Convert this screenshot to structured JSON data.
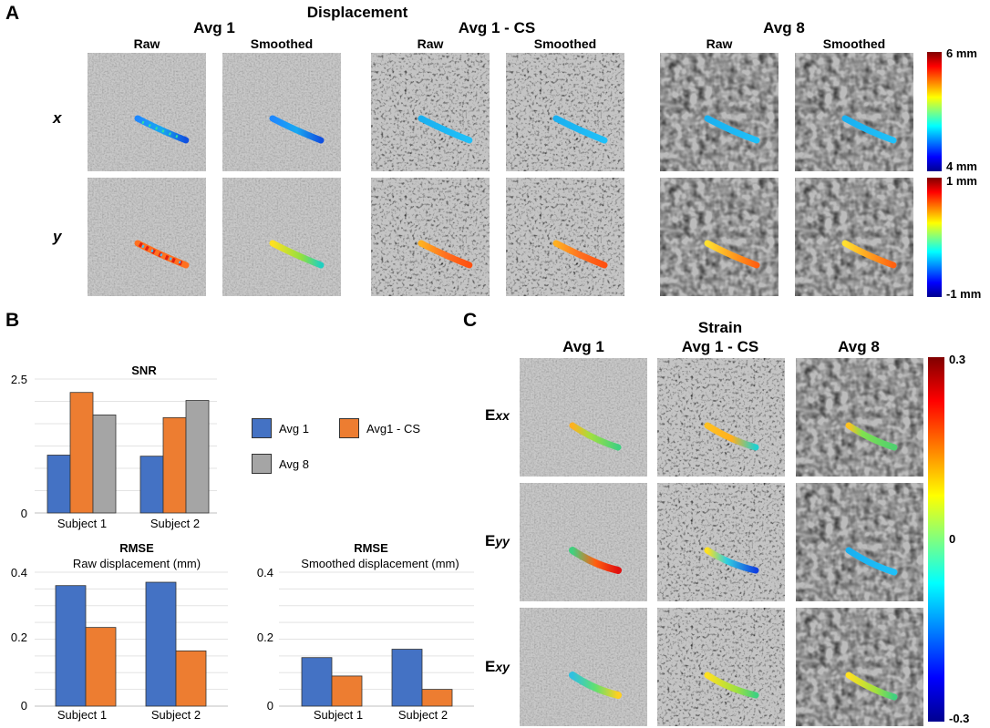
{
  "panel_a": {
    "letter": "A",
    "title": "Displacement",
    "groups": [
      {
        "name": "Avg 1",
        "cols": [
          "Raw",
          "Smoothed"
        ]
      },
      {
        "name": "Avg 1 - CS",
        "cols": [
          "Raw",
          "Smoothed"
        ]
      },
      {
        "name": "Avg 8",
        "cols": [
          "Raw",
          "Smoothed"
        ]
      }
    ],
    "row_labels": [
      "x",
      "y"
    ],
    "colorbar_x": {
      "max": "6 mm",
      "min": "4 mm"
    },
    "colorbar_y": {
      "max": "1 mm",
      "min": "-1 mm"
    }
  },
  "panel_b": {
    "letter": "B",
    "legend": [
      "Avg 1",
      "Avg1 - CS",
      "Avg 8"
    ],
    "colors": {
      "avg1": "#4472c4",
      "avg1cs": "#ed7d31",
      "avg8": "#a5a5a5"
    }
  },
  "panel_c": {
    "letter": "C",
    "title": "Strain",
    "cols": [
      "Avg 1",
      "Avg 1 - CS",
      "Avg 8"
    ],
    "rows": [
      {
        "main": "E",
        "sub": "xx"
      },
      {
        "main": "E",
        "sub": "yy"
      },
      {
        "main": "E",
        "sub": "xy"
      }
    ],
    "colorbar": {
      "max": "0.3",
      "mid": "0",
      "min": "-0.3"
    }
  },
  "chart_data": [
    {
      "type": "bar",
      "title": "SNR",
      "subtitle": "",
      "categories": [
        "Subject 1",
        "Subject 2"
      ],
      "series": [
        {
          "name": "Avg 1",
          "values": [
            1.08,
            1.06
          ]
        },
        {
          "name": "Avg1 - CS",
          "values": [
            2.25,
            1.78
          ]
        },
        {
          "name": "Avg 8",
          "values": [
            1.83,
            2.1
          ]
        }
      ],
      "ylim": [
        0,
        2.5
      ],
      "yticks": [
        "0",
        "2.5"
      ],
      "grid": true
    },
    {
      "type": "bar",
      "title": "RMSE",
      "subtitle": "Raw displacement (mm)",
      "categories": [
        "Subject 1",
        "Subject 2"
      ],
      "series": [
        {
          "name": "Avg 1",
          "values": [
            0.36,
            0.37
          ]
        },
        {
          "name": "Avg1 - CS",
          "values": [
            0.235,
            0.165
          ]
        }
      ],
      "ylim": [
        0,
        0.4
      ],
      "yticks": [
        "0",
        "0.2",
        "0.4"
      ],
      "grid": true
    },
    {
      "type": "bar",
      "title": "RMSE",
      "subtitle": "Smoothed displacement (mm)",
      "categories": [
        "Subject 1",
        "Subject 2"
      ],
      "series": [
        {
          "name": "Avg 1",
          "values": [
            0.145,
            0.17
          ]
        },
        {
          "name": "Avg1 - CS",
          "values": [
            0.09,
            0.05
          ]
        }
      ],
      "ylim": [
        0,
        0.4
      ],
      "yticks": [
        "0",
        "0.2",
        "0.4"
      ],
      "grid": true
    }
  ]
}
